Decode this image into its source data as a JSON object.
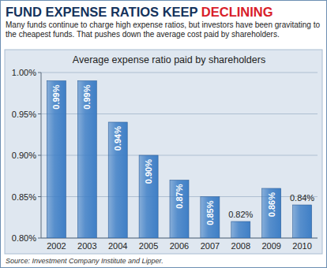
{
  "chart_data": {
    "type": "bar",
    "title": "FUND EXPENSE RATIOS KEEP DECLINING",
    "subtitle": "Many funds continue to charge high expense ratios, but investors have been gravitating to the cheapest funds. That pushes down the average cost paid by shareholders.",
    "plot_title": "Average expense ratio paid by shareholders",
    "source": "Source: Investment Company Institute and Lipper.",
    "categories": [
      "2002",
      "2003",
      "2004",
      "2005",
      "2006",
      "2007",
      "2008",
      "2009",
      "2010"
    ],
    "values": [
      0.99,
      0.99,
      0.94,
      0.9,
      0.87,
      0.85,
      0.82,
      0.86,
      0.84
    ],
    "value_labels": [
      "0.99%",
      "0.99%",
      "0.94%",
      "0.90%",
      "0.87%",
      "0.85%",
      "0.82%",
      "0.86%",
      "0.84%"
    ],
    "data_labels": true,
    "color": "#3f7fc6",
    "ylim": [
      0.8,
      1.0
    ],
    "yticks": [
      {
        "value": 0.8,
        "label": "0.80%"
      },
      {
        "value": 0.85,
        "label": "0.85%"
      },
      {
        "value": 0.9,
        "label": "0.90%"
      },
      {
        "value": 0.95,
        "label": "0.95%"
      },
      {
        "value": 1.0,
        "label": "1.00%"
      }
    ],
    "grid": true
  }
}
